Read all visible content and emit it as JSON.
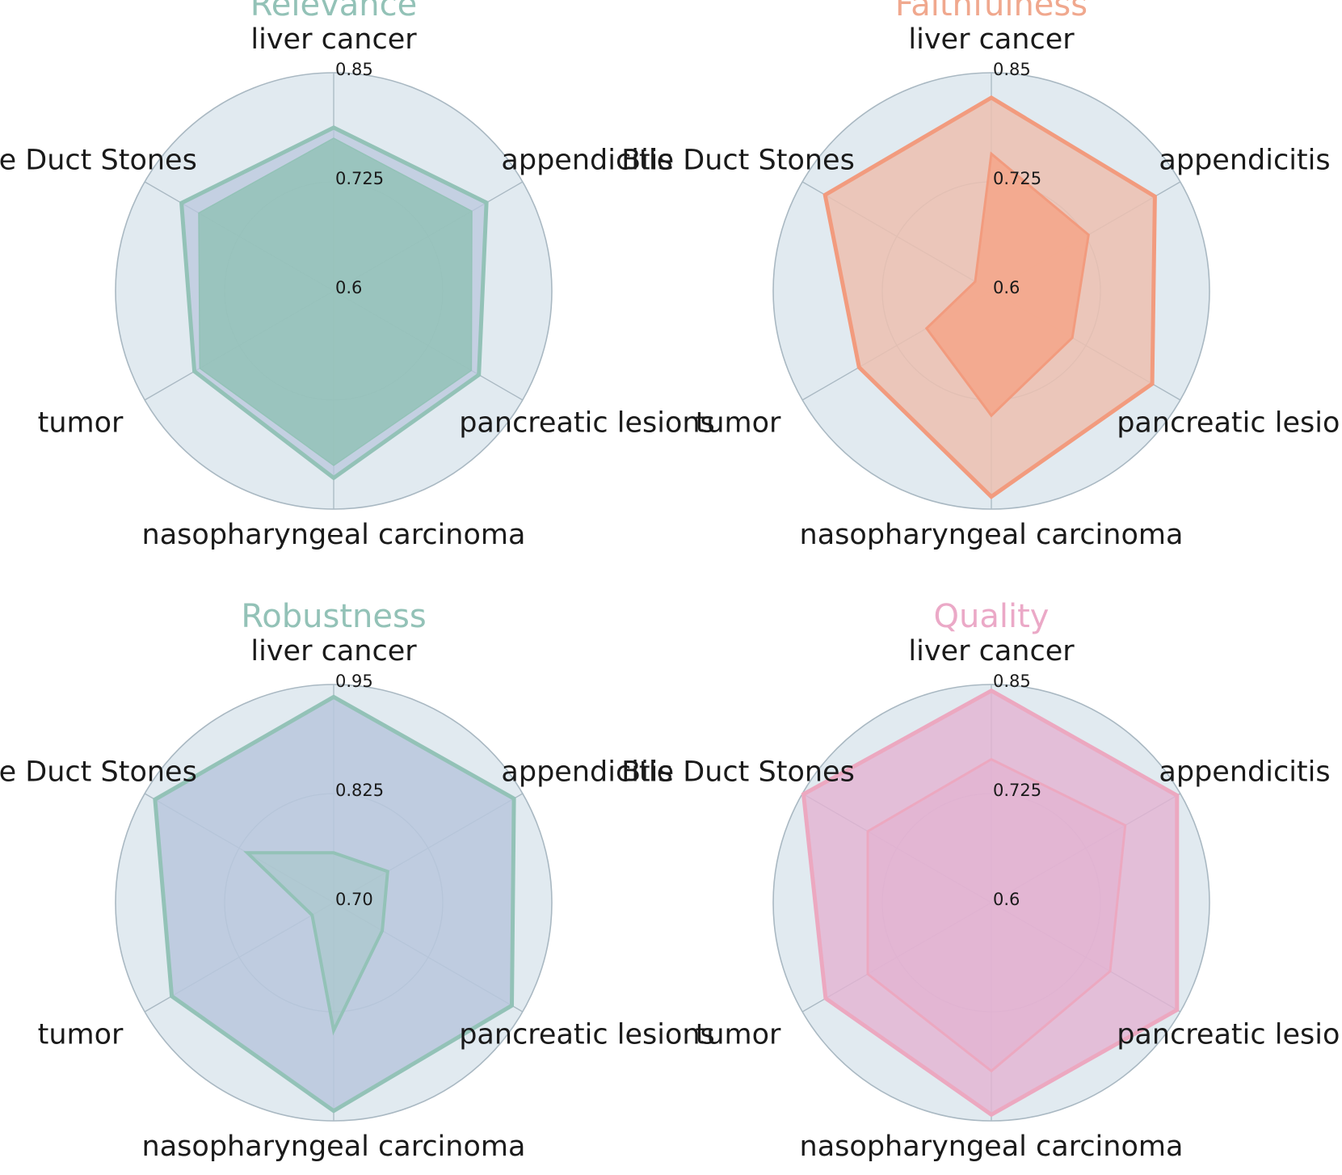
{
  "chart_data": [
    {
      "type": "radar",
      "title": "Relevance",
      "title_color": "#93c2b7",
      "axes": [
        "liver cancer",
        "appendicitis",
        "pancreatic lesions",
        "nasopharyngeal carcinoma",
        "tumor",
        "Bile Duct Stones"
      ],
      "ticks": [
        "0.85",
        "0.725",
        "0.6"
      ],
      "rlim": [
        0.5,
        0.85
      ],
      "fill_color": "#93c2b7",
      "grid": true,
      "background": "#e1eaf0",
      "series": [
        {
          "values": [
            0.762,
            0.783,
            0.769,
            0.8,
            0.758,
            0.782
          ],
          "color": "#93c2b7",
          "fill": "#b9c7dd",
          "fill_opacity": 0.75,
          "stroke_width": 5
        },
        {
          "values": [
            0.745,
            0.756,
            0.755,
            0.78,
            0.748,
            0.75
          ],
          "color": "#93c2b7",
          "fill": "#93c2b7",
          "fill_opacity": 0.85,
          "stroke_width": 1.5
        }
      ]
    },
    {
      "type": "radar",
      "title": "Faithfulness",
      "title_color": "#f0a88e",
      "axes": [
        "liver cancer",
        "appendicitis",
        "pancreatic lesions",
        "nasopharyngeal carcinoma",
        "tumor",
        "Bile Duct Stones"
      ],
      "ticks": [
        "0.85",
        "0.725",
        "0.6"
      ],
      "rlim": [
        0.5,
        0.85
      ],
      "fill_color": "#f0a88e",
      "grid": true,
      "background": "#e1eaf0",
      "series": [
        {
          "values": [
            0.81,
            0.803,
            0.798,
            0.83,
            0.745,
            0.808
          ],
          "color": "#f29b7e",
          "fill": "#ecc0b0",
          "fill_opacity": 0.85,
          "stroke_width": 5
        },
        {
          "values": [
            0.72,
            0.68,
            0.65,
            0.7,
            0.62,
            0.53
          ],
          "color": "#f29b7e",
          "fill": "#f3a98d",
          "fill_opacity": 0.95,
          "stroke_width": 3
        }
      ]
    },
    {
      "type": "radar",
      "title": "Robustness",
      "title_color": "#93c2b7",
      "axes": [
        "liver cancer",
        "appendicitis",
        "pancreatic lesions",
        "nasopharyngeal carcinoma",
        "tumor",
        "Bile Duct Stones"
      ],
      "ticks": [
        "0.95",
        "0.825",
        "0.70"
      ],
      "rlim": [
        0.6,
        0.95
      ],
      "fill_color": "#93c2b7",
      "grid": true,
      "background": "#e1eaf0",
      "series": [
        {
          "values": [
            0.93,
            0.934,
            0.93,
            0.934,
            0.9,
            0.931
          ],
          "color": "#93c2b7",
          "fill": "#b9c7dd",
          "fill_opacity": 0.85,
          "stroke_width": 5
        },
        {
          "values": [
            0.68,
            0.7,
            0.69,
            0.805,
            0.64,
            0.76
          ],
          "color": "#93c2b7",
          "fill": "#a6c7c8",
          "fill_opacity": 0.6,
          "stroke_width": 4
        }
      ]
    },
    {
      "type": "radar",
      "title": "Quality",
      "title_color": "#eba9c7",
      "axes": [
        "liver cancer",
        "appendicitis",
        "pancreatic lesions",
        "nasopharyngeal carcinoma",
        "tumor",
        "Bile Duct Stones"
      ],
      "ticks": [
        "0.85",
        "0.725",
        "0.6"
      ],
      "rlim": [
        0.5,
        0.85
      ],
      "fill_color": "#eba9c7",
      "grid": true,
      "background": "#e1eaf0",
      "series": [
        {
          "values": [
            0.84,
            0.844,
            0.844,
            0.84,
            0.807,
            0.848
          ],
          "color": "#eca8c0",
          "fill": "#e3b3d2",
          "fill_opacity": 0.8,
          "stroke_width": 5
        },
        {
          "values": [
            0.73,
            0.748,
            0.72,
            0.77,
            0.729,
            0.729
          ],
          "color": "#eca8c0",
          "fill": "#e3b3d2",
          "fill_opacity": 0.75,
          "stroke_width": 3
        }
      ]
    }
  ]
}
